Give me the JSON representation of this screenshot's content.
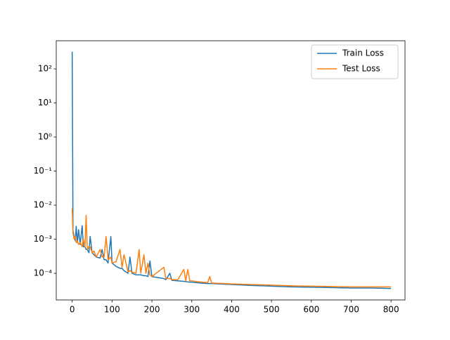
{
  "chart_data": {
    "type": "line",
    "x": [
      0,
      2,
      5,
      8,
      10,
      13,
      16,
      20,
      25,
      28,
      32,
      35,
      38,
      42,
      45,
      50,
      55,
      60,
      70,
      75,
      80,
      85,
      90,
      97,
      100,
      110,
      120,
      125,
      130,
      140,
      145,
      150,
      160,
      168,
      172,
      180,
      185,
      190,
      195,
      200,
      215,
      230,
      235,
      245,
      250,
      265,
      280,
      285,
      290,
      295,
      300,
      320,
      340,
      345,
      350,
      380,
      400,
      450,
      500,
      550,
      600,
      650,
      700,
      750,
      800
    ],
    "series": [
      {
        "name": "Train Loss",
        "color": "#1f77b4",
        "values": [
          320,
          0.0018,
          0.0012,
          0.0009,
          0.0024,
          0.0008,
          0.0019,
          0.0007,
          0.0025,
          0.0006,
          0.0006,
          0.0005,
          0.0005,
          0.0004,
          0.0012,
          0.0004,
          0.00035,
          0.0003,
          0.00028,
          0.0005,
          0.00025,
          0.00025,
          0.0002,
          0.0012,
          0.0002,
          0.00016,
          0.00014,
          0.00014,
          0.00012,
          0.0001,
          0.0003,
          0.0001,
          9e-05,
          9e-05,
          9e-05,
          8.5e-05,
          8.5e-05,
          8e-05,
          0.00023,
          8e-05,
          7.5e-05,
          7e-05,
          6.5e-05,
          0.0001,
          6.2e-05,
          6e-05,
          5.8e-05,
          5.7e-05,
          5.6e-05,
          5.5e-05,
          5.5e-05,
          5.2e-05,
          5e-05,
          5e-05,
          5e-05,
          4.8e-05,
          4.7e-05,
          4.4e-05,
          4.2e-05,
          4e-05,
          3.9e-05,
          3.8e-05,
          3.7e-05,
          3.7e-05,
          3.6e-05
        ]
      },
      {
        "name": "Test Loss",
        "color": "#ff7f0e",
        "values": [
          0.008,
          0.0015,
          0.001,
          0.0012,
          0.0008,
          0.0009,
          0.0007,
          0.0008,
          0.0006,
          0.001,
          0.0006,
          0.005,
          0.0005,
          0.0006,
          0.0006,
          0.0004,
          0.00045,
          0.0003,
          0.0005,
          0.0003,
          0.0003,
          0.0012,
          0.00025,
          0.0003,
          0.0002,
          0.00022,
          0.0005,
          0.00015,
          0.00035,
          0.00011,
          0.00012,
          0.00011,
          0.0001,
          0.0005,
          0.0001,
          0.00035,
          0.0001,
          0.0002,
          9e-05,
          8e-05,
          0.00011,
          0.00015,
          7e-05,
          7e-05,
          6.5e-05,
          6.5e-05,
          0.00013,
          6e-05,
          0.00013,
          6e-05,
          6e-05,
          5.6e-05,
          5.3e-05,
          8e-05,
          5.2e-05,
          5e-05,
          4.9e-05,
          4.7e-05,
          4.5e-05,
          4.3e-05,
          4.2e-05,
          4.1e-05,
          4e-05,
          4e-05,
          4e-05
        ]
      }
    ],
    "xlim": [
      -40,
      835
    ],
    "xticks": [
      0,
      100,
      200,
      300,
      400,
      500,
      600,
      700,
      800
    ],
    "ylim": [
      1.65e-05,
      670
    ],
    "ylog": true,
    "yticks": [
      {
        "value": 0.0001,
        "label": "10⁻⁴"
      },
      {
        "value": 0.001,
        "label": "10⁻³"
      },
      {
        "value": 0.01,
        "label": "10⁻²"
      },
      {
        "value": 0.1,
        "label": "10⁻¹"
      },
      {
        "value": 1,
        "label": "10⁰"
      },
      {
        "value": 10,
        "label": "10¹"
      },
      {
        "value": 100,
        "label": "10²"
      }
    ],
    "legend": "upper right"
  }
}
